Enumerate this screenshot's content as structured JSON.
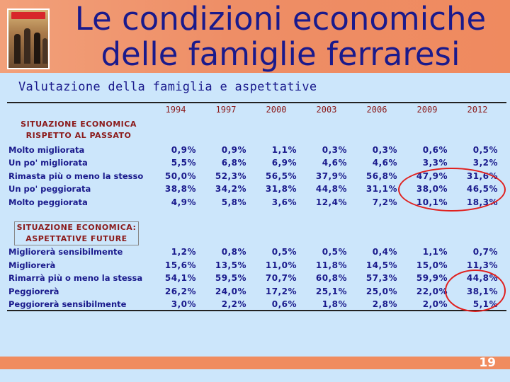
{
  "header": {
    "title_line1": "Le condizioni economiche",
    "title_line2": "delle famiglie ferraresi",
    "thumbnail_icon": "storefront-people-photo"
  },
  "subtitle": "Valutazione della famiglia e aspettative",
  "years": [
    "1994",
    "1997",
    "2000",
    "2003",
    "2006",
    "2009",
    "2012"
  ],
  "section1": {
    "heading_line1": "SITUAZIONE ECONOMICA",
    "heading_line2": "RISPETTO AL PASSATO",
    "rows": [
      {
        "label": "Molto migliorata",
        "values": [
          "0,9%",
          "0,9%",
          "1,1%",
          "0,3%",
          "0,3%",
          "0,6%",
          "0,5%"
        ]
      },
      {
        "label": "Un po' migliorata",
        "values": [
          "5,5%",
          "6,8%",
          "6,9%",
          "4,6%",
          "4,6%",
          "3,3%",
          "3,2%"
        ]
      },
      {
        "label": "Rimasta più o meno la stesso",
        "values": [
          "50,0%",
          "52,3%",
          "56,5%",
          "37,9%",
          "56,8%",
          "47,9%",
          "31,6%"
        ]
      },
      {
        "label": "Un po' peggiorata",
        "values": [
          "38,8%",
          "34,2%",
          "31,8%",
          "44,8%",
          "31,1%",
          "38,0%",
          "46,5%"
        ]
      },
      {
        "label": "Molto peggiorata",
        "values": [
          "4,9%",
          "5,8%",
          "3,6%",
          "12,4%",
          "7,2%",
          "10,1%",
          "18,3%"
        ]
      }
    ]
  },
  "section2": {
    "heading_line1": "SITUAZIONE ECONOMICA:",
    "heading_line2": "ASPETTATIVE FUTURE",
    "rows": [
      {
        "label": "Migliorerà sensibilmente",
        "values": [
          "1,2%",
          "0,8%",
          "0,5%",
          "0,5%",
          "0,4%",
          "1,1%",
          "0,7%"
        ]
      },
      {
        "label": "Migliorerà",
        "values": [
          "15,6%",
          "13,5%",
          "11,0%",
          "11,8%",
          "14,5%",
          "15,0%",
          "11,3%"
        ]
      },
      {
        "label": "Rimarrà più o meno la stessa",
        "values": [
          "54,1%",
          "59,5%",
          "70,7%",
          "60,8%",
          "57,3%",
          "59,9%",
          "44,8%"
        ]
      },
      {
        "label": "Peggiorerà",
        "values": [
          "26,2%",
          "24,0%",
          "17,2%",
          "25,1%",
          "25,0%",
          "22,0%",
          "38,1%"
        ]
      },
      {
        "label": "Peggiorerà sensibilmente",
        "values": [
          "3,0%",
          "2,2%",
          "0,6%",
          "1,8%",
          "2,8%",
          "2,0%",
          "5,1%"
        ]
      }
    ]
  },
  "page_number": "19",
  "colors": {
    "header_bg": "#ef8e66",
    "title_text": "#1a1a8c",
    "year_text": "#8b1a1a",
    "background": "#cce6fb",
    "highlight_oval": "#e0201e"
  }
}
